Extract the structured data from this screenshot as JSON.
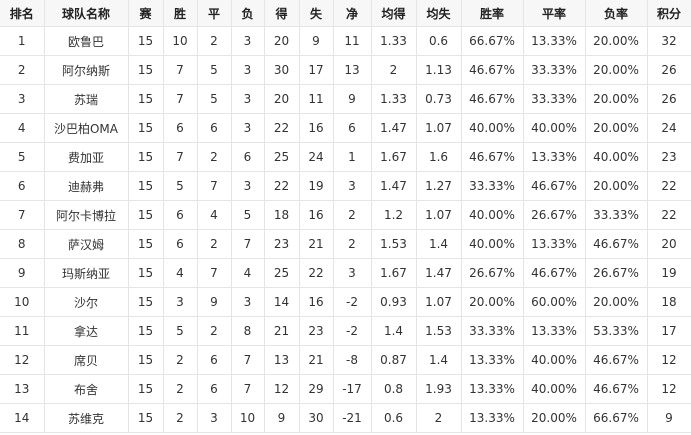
{
  "table": {
    "headers": [
      "排名",
      "球队名称",
      "赛",
      "胜",
      "平",
      "负",
      "得",
      "失",
      "净",
      "均得",
      "均失",
      "胜率",
      "平率",
      "负率",
      "积分"
    ],
    "rows": [
      [
        "1",
        "欧鲁巴",
        "15",
        "10",
        "2",
        "3",
        "20",
        "9",
        "11",
        "1.33",
        "0.6",
        "66.67%",
        "13.33%",
        "20.00%",
        "32"
      ],
      [
        "2",
        "阿尔纳斯",
        "15",
        "7",
        "5",
        "3",
        "30",
        "17",
        "13",
        "2",
        "1.13",
        "46.67%",
        "33.33%",
        "20.00%",
        "26"
      ],
      [
        "3",
        "苏瑞",
        "15",
        "7",
        "5",
        "3",
        "20",
        "11",
        "9",
        "1.33",
        "0.73",
        "46.67%",
        "33.33%",
        "20.00%",
        "26"
      ],
      [
        "4",
        "沙巴柏OMA",
        "15",
        "6",
        "6",
        "3",
        "22",
        "16",
        "6",
        "1.47",
        "1.07",
        "40.00%",
        "40.00%",
        "20.00%",
        "24"
      ],
      [
        "5",
        "费加亚",
        "15",
        "7",
        "2",
        "6",
        "25",
        "24",
        "1",
        "1.67",
        "1.6",
        "46.67%",
        "13.33%",
        "40.00%",
        "23"
      ],
      [
        "6",
        "迪赫弗",
        "15",
        "5",
        "7",
        "3",
        "22",
        "19",
        "3",
        "1.47",
        "1.27",
        "33.33%",
        "46.67%",
        "20.00%",
        "22"
      ],
      [
        "7",
        "阿尔卡博拉",
        "15",
        "6",
        "4",
        "5",
        "18",
        "16",
        "2",
        "1.2",
        "1.07",
        "40.00%",
        "26.67%",
        "33.33%",
        "22"
      ],
      [
        "8",
        "萨汉姆",
        "15",
        "6",
        "2",
        "7",
        "23",
        "21",
        "2",
        "1.53",
        "1.4",
        "40.00%",
        "13.33%",
        "46.67%",
        "20"
      ],
      [
        "9",
        "玛斯纳亚",
        "15",
        "4",
        "7",
        "4",
        "25",
        "22",
        "3",
        "1.67",
        "1.47",
        "26.67%",
        "46.67%",
        "26.67%",
        "19"
      ],
      [
        "10",
        "沙尔",
        "15",
        "3",
        "9",
        "3",
        "14",
        "16",
        "-2",
        "0.93",
        "1.07",
        "20.00%",
        "60.00%",
        "20.00%",
        "18"
      ],
      [
        "11",
        "拿达",
        "15",
        "5",
        "2",
        "8",
        "21",
        "23",
        "-2",
        "1.4",
        "1.53",
        "33.33%",
        "13.33%",
        "53.33%",
        "17"
      ],
      [
        "12",
        "席贝",
        "15",
        "2",
        "6",
        "7",
        "13",
        "21",
        "-8",
        "0.87",
        "1.4",
        "13.33%",
        "40.00%",
        "46.67%",
        "12"
      ],
      [
        "13",
        "布舍",
        "15",
        "2",
        "6",
        "7",
        "12",
        "29",
        "-17",
        "0.8",
        "1.93",
        "13.33%",
        "40.00%",
        "46.67%",
        "12"
      ],
      [
        "14",
        "苏维克",
        "15",
        "2",
        "3",
        "10",
        "9",
        "30",
        "-21",
        "0.6",
        "2",
        "13.33%",
        "20.00%",
        "66.67%",
        "9"
      ]
    ]
  }
}
